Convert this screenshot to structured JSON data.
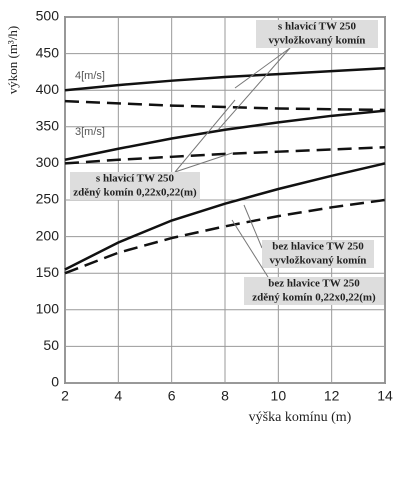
{
  "chart_data": {
    "type": "line",
    "x_label": "výška komínu (m)",
    "y_label": "výkon (m³/h)",
    "x": [
      2,
      4,
      6,
      8,
      10,
      12,
      14
    ],
    "xlim": [
      2,
      14
    ],
    "xticks": [
      2,
      4,
      6,
      8,
      10,
      12,
      14
    ],
    "ylim": [
      0,
      500
    ],
    "yticks": [
      0,
      50,
      100,
      150,
      200,
      250,
      300,
      350,
      400,
      450,
      500
    ],
    "grid": true,
    "series": [
      {
        "color": "#111111",
        "dash": false,
        "values": [
          400,
          407,
          413,
          418,
          422,
          426,
          430
        ]
      },
      {
        "color": "#111111",
        "dash": true,
        "values": [
          385,
          382,
          379,
          377,
          375,
          374,
          373
        ]
      },
      {
        "color": "#111111",
        "dash": false,
        "values": [
          305,
          320,
          334,
          346,
          356,
          365,
          372
        ]
      },
      {
        "color": "#111111",
        "dash": true,
        "values": [
          300,
          305,
          309,
          313,
          316,
          319,
          322
        ]
      },
      {
        "color": "#111111",
        "dash": false,
        "values": [
          155,
          192,
          222,
          245,
          265,
          283,
          300
        ]
      },
      {
        "color": "#111111",
        "dash": true,
        "values": [
          150,
          178,
          198,
          214,
          228,
          240,
          250
        ]
      }
    ],
    "annotations": [
      {
        "text": "4[m/s]"
      },
      {
        "text": "3[m/s]"
      },
      {
        "lines": [
          "s hlavicí TW 250",
          "vyvložkovaný komín"
        ]
      },
      {
        "lines": [
          "s hlavicí TW 250",
          "zděný komín 0,22x0,22(m)"
        ]
      },
      {
        "lines": [
          "bez hlavice TW 250",
          "vyvložkovaný komín"
        ]
      },
      {
        "lines": [
          "bez hlavice TW 250",
          "zděný komín 0,22x0,22(m)"
        ]
      }
    ]
  }
}
